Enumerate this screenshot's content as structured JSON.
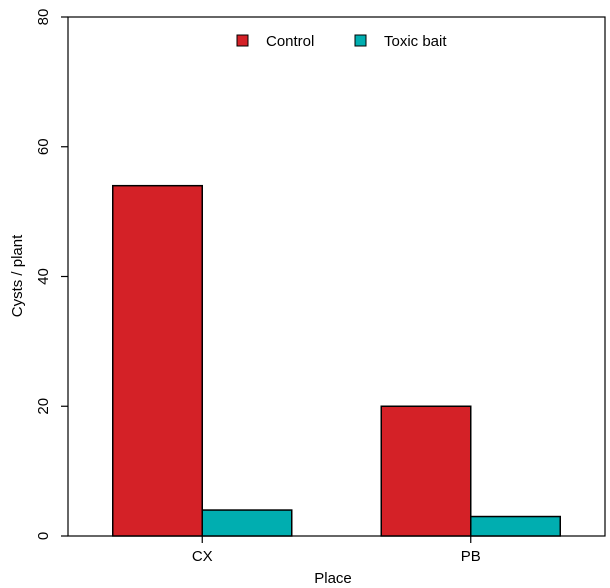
{
  "chart_data": {
    "type": "bar",
    "title": "",
    "xlabel": "Place",
    "ylabel": "Cysts / plant",
    "categories": [
      "CX",
      "PB"
    ],
    "series": [
      {
        "name": "Control",
        "values": [
          54,
          20
        ],
        "color": "#d42127"
      },
      {
        "name": "Toxic bait",
        "values": [
          4,
          3
        ],
        "color": "#00aeb0"
      }
    ],
    "ylim": [
      0,
      80
    ],
    "yticks": [
      "0",
      "20",
      "40",
      "60",
      "80"
    ],
    "grid": false,
    "legend_position": "top-center"
  }
}
